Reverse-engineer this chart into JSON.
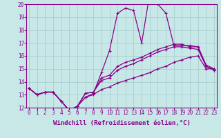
{
  "x": [
    0,
    1,
    2,
    3,
    4,
    5,
    6,
    7,
    8,
    9,
    10,
    11,
    12,
    13,
    14,
    15,
    16,
    17,
    18,
    19,
    20,
    21,
    22,
    23
  ],
  "line1": [
    13.5,
    13.0,
    13.2,
    13.2,
    12.5,
    11.8,
    12.1,
    12.8,
    13.1,
    14.7,
    16.4,
    19.3,
    19.7,
    19.5,
    17.0,
    20.8,
    20.0,
    19.3,
    16.8,
    16.8,
    16.8,
    16.7,
    15.2,
    14.9
  ],
  "line2": [
    13.5,
    13.0,
    13.2,
    13.2,
    12.5,
    11.8,
    12.1,
    13.1,
    13.2,
    14.3,
    14.5,
    15.2,
    15.5,
    15.7,
    15.9,
    16.2,
    16.5,
    16.7,
    16.9,
    16.9,
    16.7,
    16.7,
    15.3,
    15.0
  ],
  "line3": [
    13.5,
    13.0,
    13.2,
    13.2,
    12.5,
    11.8,
    12.1,
    13.1,
    13.2,
    14.1,
    14.3,
    14.9,
    15.2,
    15.4,
    15.7,
    16.0,
    16.3,
    16.5,
    16.7,
    16.7,
    16.6,
    16.5,
    15.2,
    14.9
  ],
  "line4": [
    13.5,
    13.0,
    13.2,
    13.2,
    12.5,
    11.8,
    12.1,
    12.8,
    13.0,
    13.4,
    13.6,
    13.9,
    14.1,
    14.3,
    14.5,
    14.7,
    15.0,
    15.2,
    15.5,
    15.7,
    15.9,
    16.0,
    15.0,
    15.0
  ],
  "ylim_min": 12,
  "ylim_max": 20,
  "xlim_min": 0,
  "xlim_max": 23,
  "yticks": [
    12,
    13,
    14,
    15,
    16,
    17,
    18,
    19,
    20
  ],
  "xticks": [
    0,
    1,
    2,
    3,
    4,
    5,
    6,
    7,
    8,
    9,
    10,
    11,
    12,
    13,
    14,
    15,
    16,
    17,
    18,
    19,
    20,
    21,
    22,
    23
  ],
  "color": "#880088",
  "bg_color": "#c8e8e8",
  "grid_color": "#a8cece",
  "xlabel": "Windchill (Refroidissement éolien,°C)",
  "tick_fontsize": 5.5,
  "label_fontsize": 6.5
}
